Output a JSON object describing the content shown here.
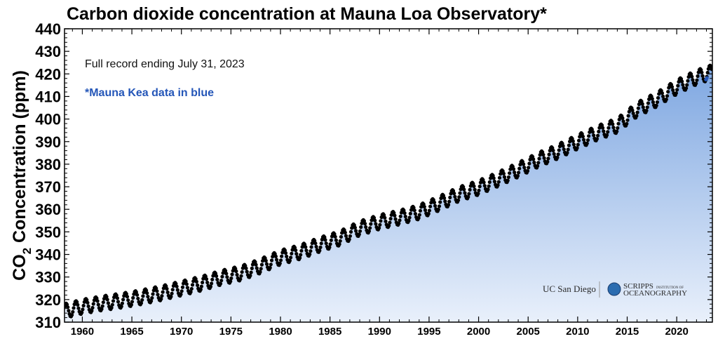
{
  "chart_data": {
    "type": "scatter",
    "title": "Carbon dioxide concentration at Mauna Loa Observatory*",
    "ylabel_main": "CO",
    "ylabel_sub": "2",
    "ylabel_rest": " Concentration (ppm)",
    "annotations": {
      "record_note": "Full record ending July 31, 2023",
      "mauna_kea_note": "*Mauna Kea data in blue"
    },
    "xlim": [
      1958.2,
      2023.6
    ],
    "ylim": [
      310,
      440
    ],
    "x_ticks": [
      1960,
      1965,
      1970,
      1975,
      1980,
      1985,
      1990,
      1995,
      2000,
      2005,
      2010,
      2015,
      2020
    ],
    "y_ticks": [
      310,
      320,
      330,
      340,
      350,
      360,
      370,
      380,
      390,
      400,
      410,
      420,
      430,
      440
    ],
    "series": [
      {
        "color": "#000000",
        "x": [
          1958.25,
          1960,
          1962,
          1964,
          1966,
          1968,
          1970,
          1972,
          1974,
          1976,
          1978,
          1980,
          1982,
          1984,
          1986,
          1988,
          1990,
          1992,
          1994,
          1996,
          1998,
          2000,
          2002,
          2004,
          2006,
          2008,
          2010,
          2012,
          2014,
          2016,
          2018,
          2020,
          2022,
          2023.5
        ],
        "y": [
          315.0,
          316.9,
          318.4,
          319.6,
          321.1,
          322.9,
          325.0,
          327.1,
          329.7,
          331.7,
          334.9,
          338.7,
          341.1,
          344.4,
          347.2,
          351.6,
          354.4,
          356.4,
          358.8,
          362.6,
          366.7,
          369.6,
          373.4,
          377.5,
          381.9,
          385.6,
          389.9,
          393.9,
          397.2,
          404.2,
          408.7,
          414.2,
          418.5,
          420.8
        ],
        "seasonal_amplitude": 3.2
      },
      {
        "color": "#2456b8",
        "x": [
          2022.95,
          2023.05
        ],
        "y": [
          417.5,
          418.2
        ]
      }
    ],
    "fill_colors": [
      "#dbe7f8",
      "#7ea7e1"
    ],
    "logos": {
      "ucsd": "UC San Diego",
      "scripps_top": "SCRIPPS",
      "scripps_small": "INSTITUTION OF",
      "scripps_bottom": "OCEANOGRAPHY"
    }
  }
}
